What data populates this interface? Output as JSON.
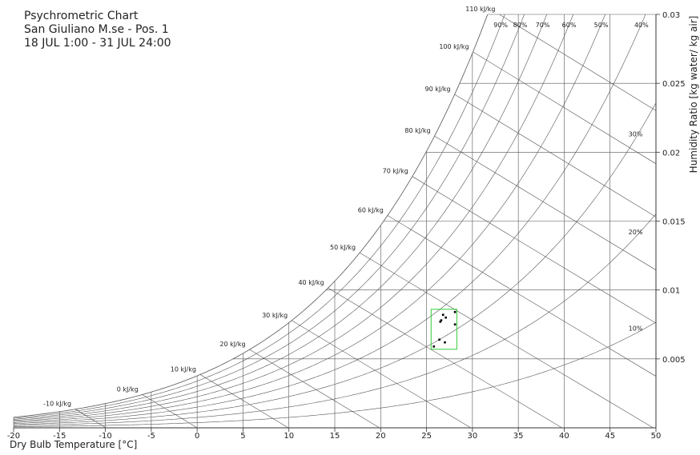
{
  "chart_data": {
    "type": "scatter",
    "title": "Psychrometric Chart",
    "subtitle_lines": [
      "San Giuliano M.se - Pos. 1",
      "18 JUL 1:00 - 31 JUL 24:00"
    ],
    "xlabel": "Dry Bulb Temperature [°C]",
    "ylabel": "Humidity Ratio [kg water/ kg air]",
    "xlim": [
      -20,
      50
    ],
    "ylim": [
      0,
      0.03
    ],
    "x_ticks": [
      "-20",
      "-15",
      "-10",
      "-5",
      "0",
      "5",
      "10",
      "15",
      "20",
      "25",
      "30",
      "35",
      "40",
      "45",
      "50"
    ],
    "y_ticks": [
      "0.005",
      "0.01",
      "0.015",
      "0.02",
      "0.025",
      "0.03"
    ],
    "grid": true,
    "relative_humidity_curves": [
      {
        "rh": 90,
        "label": "90%"
      },
      {
        "rh": 80,
        "label": "80%"
      },
      {
        "rh": 70,
        "label": "70%"
      },
      {
        "rh": 60,
        "label": "60%"
      },
      {
        "rh": 50,
        "label": "50%"
      },
      {
        "rh": 40,
        "label": "40%"
      },
      {
        "rh": 30,
        "label": "30%"
      },
      {
        "rh": 20,
        "label": "20%"
      },
      {
        "rh": 10,
        "label": "10%"
      }
    ],
    "enthalpy_lines": [
      {
        "h": -10,
        "label": "-10 kJ/kg"
      },
      {
        "h": 0,
        "label": "0 kJ/kg"
      },
      {
        "h": 10,
        "label": "10 kJ/kg"
      },
      {
        "h": 20,
        "label": "20 kJ/kg"
      },
      {
        "h": 30,
        "label": "30 kJ/kg"
      },
      {
        "h": 40,
        "label": "40 kJ/kg"
      },
      {
        "h": 50,
        "label": "50 kJ/kg"
      },
      {
        "h": 60,
        "label": "60 kJ/kg"
      },
      {
        "h": 70,
        "label": "70 kJ/kg"
      },
      {
        "h": 80,
        "label": "80 kJ/kg"
      },
      {
        "h": 90,
        "label": "90 kJ/kg"
      },
      {
        "h": 100,
        "label": "100 kJ/kg"
      },
      {
        "h": 110,
        "label": "110 kJ/kg"
      }
    ],
    "points": [
      {
        "x": 26.8,
        "y": 0.0082
      },
      {
        "x": 27.1,
        "y": 0.008
      },
      {
        "x": 26.6,
        "y": 0.0078
      },
      {
        "x": 26.5,
        "y": 0.0077
      },
      {
        "x": 28.1,
        "y": 0.0084
      },
      {
        "x": 28.1,
        "y": 0.0075
      },
      {
        "x": 26.4,
        "y": 0.0064
      },
      {
        "x": 27.0,
        "y": 0.0062
      },
      {
        "x": 25.8,
        "y": 0.0059
      }
    ],
    "comfort_zone": {
      "x": [
        25.5,
        28.3
      ],
      "y": [
        0.0057,
        0.0086
      ],
      "color": "#33cc33"
    }
  }
}
